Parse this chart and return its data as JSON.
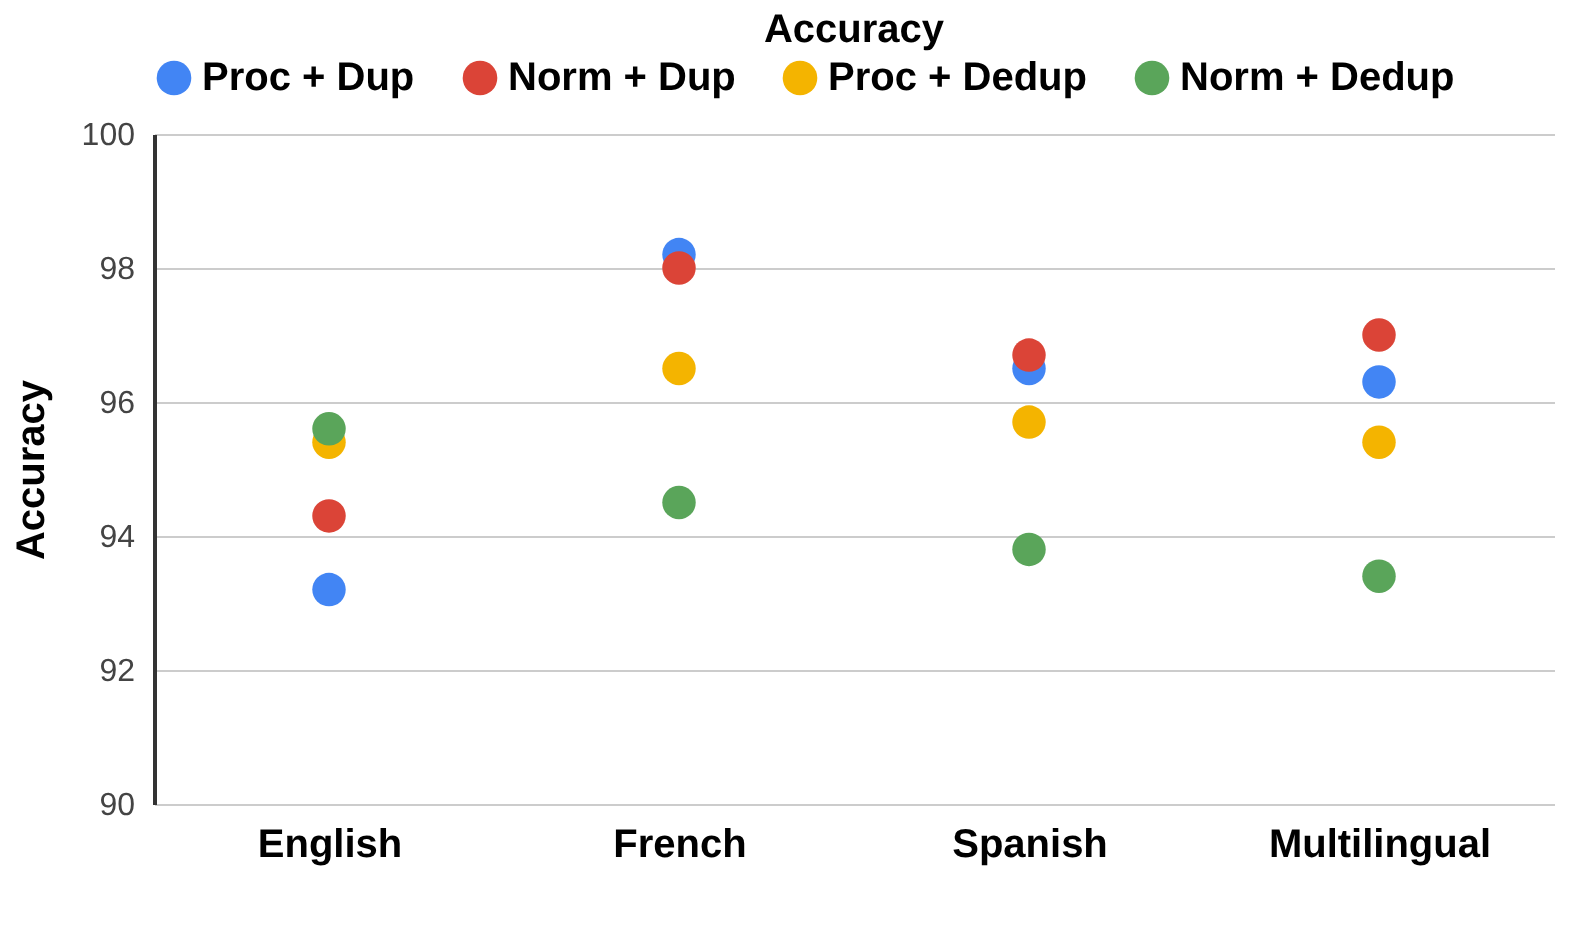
{
  "chart_data": {
    "type": "scatter",
    "title": "Accuracy",
    "ylabel": "Accuracy",
    "categories": [
      "English",
      "French",
      "Spanish",
      "Multilingual"
    ],
    "series": [
      {
        "name": "Proc + Dup",
        "color": "#4285f4",
        "values": [
          93.2,
          98.2,
          96.5,
          96.3
        ]
      },
      {
        "name": "Norm + Dup",
        "color": "#db4437",
        "values": [
          94.3,
          98.0,
          96.7,
          97.0
        ]
      },
      {
        "name": "Proc + Dedup",
        "color": "#f4b400",
        "values": [
          95.4,
          96.5,
          95.7,
          95.4
        ]
      },
      {
        "name": "Norm + Dedup",
        "color": "#5aa55a",
        "values": [
          95.6,
          94.5,
          93.8,
          93.4
        ]
      }
    ],
    "ylim": [
      90,
      100
    ],
    "yticks": [
      90,
      92,
      94,
      96,
      98,
      100
    ],
    "grid": "y",
    "legend": "top",
    "marker": "circle"
  }
}
